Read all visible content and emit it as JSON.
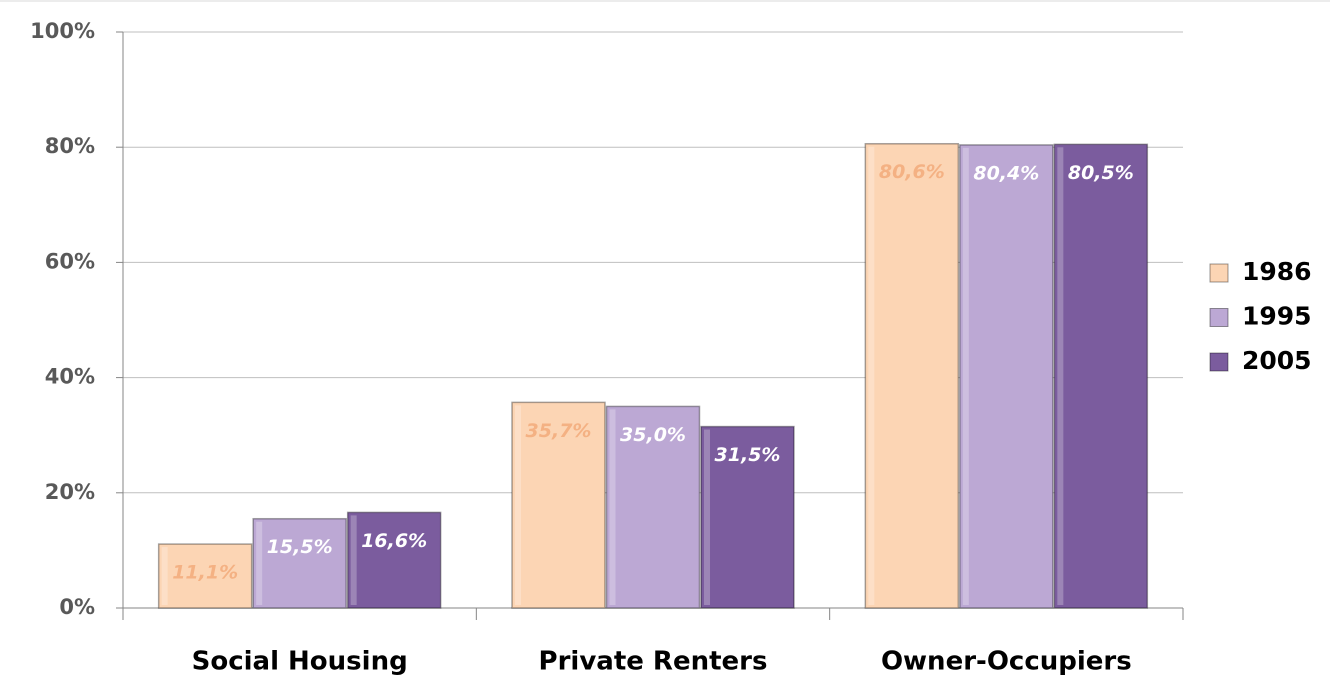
{
  "chart_data": {
    "type": "bar",
    "categories": [
      "Social Housing",
      "Private Renters",
      "Owner-Occupiers"
    ],
    "series": [
      {
        "name": "1986",
        "color": "#fcd5b4",
        "label_color": "#f4b183",
        "values": [
          11.1,
          35.7,
          80.6
        ],
        "value_labels": [
          "11,1%",
          "35,7%",
          "80,6%"
        ]
      },
      {
        "name": "1995",
        "color": "#bca8d4",
        "label_color": "#ffffff",
        "values": [
          15.5,
          35.0,
          80.4
        ],
        "value_labels": [
          "15,5%",
          "35,0%",
          "80,4%"
        ]
      },
      {
        "name": "2005",
        "color": "#7b5c9e",
        "label_color": "#ffffff",
        "values": [
          16.6,
          31.5,
          80.5
        ],
        "value_labels": [
          "16,6%",
          "31,5%",
          "80,5%"
        ]
      }
    ],
    "ylim": [
      0,
      100
    ],
    "yticks": [
      {
        "value": 0,
        "label": "0%"
      },
      {
        "value": 20,
        "label": "20%"
      },
      {
        "value": 40,
        "label": "40%"
      },
      {
        "value": 60,
        "label": "60%"
      },
      {
        "value": 80,
        "label": "80%"
      },
      {
        "value": 100,
        "label": "100%"
      }
    ],
    "grid": true,
    "legend": "right"
  }
}
